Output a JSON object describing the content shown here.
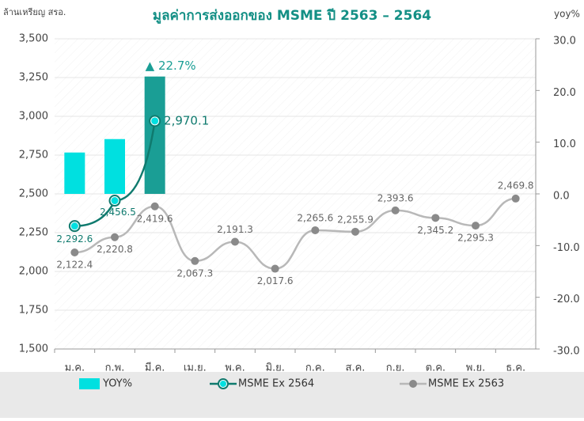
{
  "chart_data": {
    "type": "bar_line",
    "title": "มูลค่าการส่งออกของ MSME ปี 2563 – 2564",
    "y_label": "ล้านเหรียญ สรอ.",
    "y2_label": "yoy%",
    "categories": [
      "ม.ค.",
      "ก.พ.",
      "มี.ค.",
      "เม.ย.",
      "พ.ค.",
      "มิ.ย.",
      "ก.ค.",
      "ส.ค.",
      "ก.ย.",
      "ต.ค.",
      "พ.ย.",
      "ธ.ค."
    ],
    "series": [
      {
        "name": "YOY%",
        "type": "bar",
        "axis": "y2",
        "color": "#00e0e0",
        "colors": [
          "#00e0e0",
          "#00e0e0",
          "#1a9e95"
        ],
        "values": [
          8.0,
          10.6,
          22.7,
          null,
          null,
          null,
          null,
          null,
          null,
          null,
          null,
          null
        ],
        "value_labels": [
          null,
          null,
          "▲ 22.7%",
          null,
          null,
          null,
          null,
          null,
          null,
          null,
          null,
          null
        ]
      },
      {
        "name": "MSME Ex 2564",
        "type": "line",
        "color": "#0f7a6e",
        "marker_color": "#00e0e0",
        "values": [
          2292.6,
          2456.5,
          2970.1,
          null,
          null,
          null,
          null,
          null,
          null,
          null,
          null,
          null
        ],
        "value_labels": [
          "2,292.6",
          "2,456.5",
          "2,970.1",
          null,
          null,
          null,
          null,
          null,
          null,
          null,
          null,
          null
        ]
      },
      {
        "name": "MSME Ex 2563",
        "type": "line",
        "color": "#b8b8b8",
        "marker_color": "#8a8a8a",
        "values": [
          2122.4,
          2220.8,
          2419.6,
          2067.3,
          2191.3,
          2017.6,
          2265.6,
          2255.9,
          2393.6,
          2345.2,
          2295.3,
          2469.8
        ],
        "value_labels": [
          "2,122.4",
          "2,220.8",
          "2,419.6",
          "2,067.3",
          "2,191.3",
          "2,017.6",
          "2,265.6",
          "2,255.9",
          "2,393.6",
          "2,345.2",
          "2,295.3",
          "2,469.8"
        ]
      }
    ],
    "ylim": [
      1500,
      3500
    ],
    "yticks": [
      {
        "value": 1500,
        "label": "1,500"
      },
      {
        "value": 1750,
        "label": "1,750"
      },
      {
        "value": 2000,
        "label": "2,000"
      },
      {
        "value": 2250,
        "label": "2,250"
      },
      {
        "value": 2500,
        "label": "2,500"
      },
      {
        "value": 2750,
        "label": "2,750"
      },
      {
        "value": 3000,
        "label": "3,000"
      },
      {
        "value": 3250,
        "label": "3,250"
      },
      {
        "value": 3500,
        "label": "3,500"
      }
    ],
    "y2lim": [
      -30,
      30
    ],
    "y2ticks": [
      {
        "value": 30,
        "label": "30.0"
      },
      {
        "value": 20,
        "label": "20.0"
      },
      {
        "value": 10,
        "label": "10.0"
      },
      {
        "value": 0,
        "label": "0.0"
      },
      {
        "value": -10,
        "label": "-10.0"
      },
      {
        "value": -20,
        "label": "-20.0"
      },
      {
        "value": -30,
        "label": "-30.0"
      }
    ],
    "grid": true,
    "legend": "bottom"
  }
}
